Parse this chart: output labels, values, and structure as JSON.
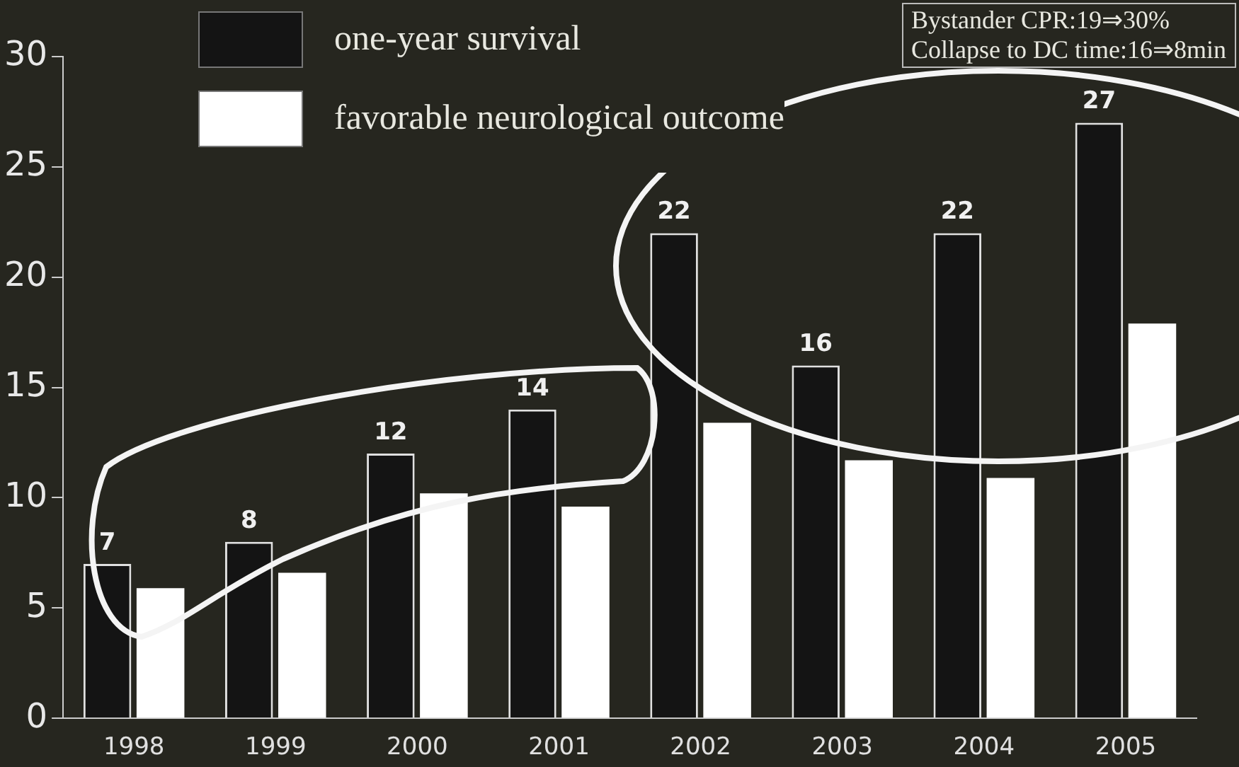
{
  "chart_data": {
    "type": "bar",
    "categories": [
      "1998",
      "1999",
      "2000",
      "2001",
      "2002",
      "2003",
      "2004",
      "2005"
    ],
    "series": [
      {
        "name": "one-year survival",
        "color": "#141414",
        "values": [
          7,
          8,
          12,
          14,
          22,
          16,
          22,
          27
        ]
      },
      {
        "name": "favorable neurological outcome",
        "color": "#ffffff",
        "values": [
          5.9,
          6.6,
          10.2,
          9.6,
          13.4,
          11.7,
          10.9,
          17.9
        ]
      }
    ],
    "value_labels": [
      [
        "7",
        "8",
        "12",
        "14",
        "22",
        "16",
        "22",
        "27"
      ],
      null
    ],
    "ylim": [
      0,
      30
    ],
    "yticks": [
      0,
      5,
      10,
      15,
      20,
      25,
      30
    ],
    "grid": false,
    "legend": "top left",
    "annotations": [
      "Bystander CPR:19⇒30%",
      "Collapse to DC time:16⇒8min"
    ]
  }
}
